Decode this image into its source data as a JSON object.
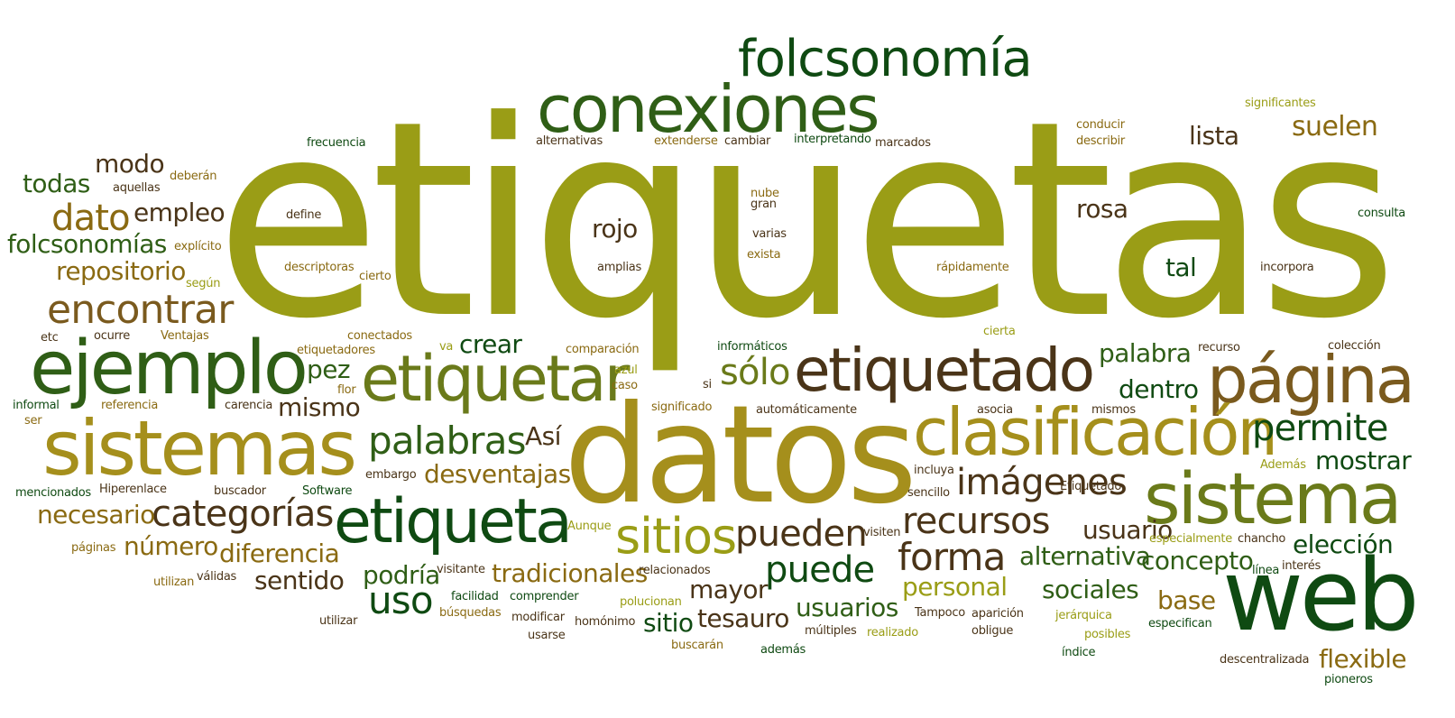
{
  "palette": {
    "olive": "#9a9d16",
    "gold": "#a58f1c",
    "ochre": "#8a6a12",
    "bronze": "#7a5a1e",
    "brown": "#4a3418",
    "dark_green": "#0f4a12",
    "mid_green": "#2f5e16",
    "moss": "#6a7a1a"
  },
  "words": [
    {
      "text": "etiquetas",
      "color": "olive"
    },
    {
      "text": "folcsonomía",
      "color": "dark_green"
    },
    {
      "text": "conexiones",
      "color": "mid_green"
    },
    {
      "text": "datos",
      "color": "gold"
    },
    {
      "text": "web",
      "color": "dark_green"
    },
    {
      "text": "sistemas",
      "color": "gold"
    },
    {
      "text": "ejemplo",
      "color": "mid_green"
    },
    {
      "text": "etiquetado",
      "color": "brown"
    },
    {
      "text": "página",
      "color": "bronze"
    },
    {
      "text": "clasificación",
      "color": "gold"
    },
    {
      "text": "sistema",
      "color": "moss"
    },
    {
      "text": "etiquetar",
      "color": "moss"
    },
    {
      "text": "etiqueta",
      "color": "dark_green"
    },
    {
      "text": "encontrar",
      "color": "bronze"
    },
    {
      "text": "sitios",
      "color": "olive"
    },
    {
      "text": "imágenes",
      "color": "brown"
    },
    {
      "text": "recursos",
      "color": "brown"
    },
    {
      "text": "palabras",
      "color": "mid_green"
    },
    {
      "text": "forma",
      "color": "brown"
    },
    {
      "text": "puede",
      "color": "dark_green"
    },
    {
      "text": "pueden",
      "color": "brown"
    },
    {
      "text": "permite",
      "color": "dark_green"
    },
    {
      "text": "categorías",
      "color": "brown"
    },
    {
      "text": "dato",
      "color": "ochre"
    },
    {
      "text": "sólo",
      "color": "moss"
    },
    {
      "text": "uso",
      "color": "dark_green"
    },
    {
      "text": "modo",
      "color": "brown"
    },
    {
      "text": "repositorio",
      "color": "ochre"
    },
    {
      "text": "folcsonomías",
      "color": "mid_green"
    },
    {
      "text": "todas",
      "color": "mid_green"
    },
    {
      "text": "empleo",
      "color": "brown"
    },
    {
      "text": "lista",
      "color": "brown"
    },
    {
      "text": "suelen",
      "color": "ochre"
    },
    {
      "text": "rosa",
      "color": "brown"
    },
    {
      "text": "rojo",
      "color": "brown"
    },
    {
      "text": "tal",
      "color": "dark_green"
    },
    {
      "text": "crear",
      "color": "dark_green"
    },
    {
      "text": "pez",
      "color": "mid_green"
    },
    {
      "text": "mismo",
      "color": "brown"
    },
    {
      "text": "palabra",
      "color": "mid_green"
    },
    {
      "text": "dentro",
      "color": "dark_green"
    },
    {
      "text": "Así",
      "color": "brown"
    },
    {
      "text": "desventajas",
      "color": "ochre"
    },
    {
      "text": "mostrar",
      "color": "dark_green"
    },
    {
      "text": "necesario",
      "color": "ochre"
    },
    {
      "text": "número",
      "color": "ochre"
    },
    {
      "text": "diferencia",
      "color": "ochre"
    },
    {
      "text": "sentido",
      "color": "brown"
    },
    {
      "text": "podría",
      "color": "mid_green"
    },
    {
      "text": "tradicionales",
      "color": "ochre"
    },
    {
      "text": "mayor",
      "color": "brown"
    },
    {
      "text": "alternativa",
      "color": "mid_green"
    },
    {
      "text": "usuario",
      "color": "brown"
    },
    {
      "text": "elección",
      "color": "dark_green"
    },
    {
      "text": "concepto",
      "color": "mid_green"
    },
    {
      "text": "personal",
      "color": "olive"
    },
    {
      "text": "usuarios",
      "color": "mid_green"
    },
    {
      "text": "sociales",
      "color": "mid_green"
    },
    {
      "text": "base",
      "color": "ochre"
    },
    {
      "text": "tesauro",
      "color": "brown"
    },
    {
      "text": "sitio",
      "color": "dark_green"
    },
    {
      "text": "flexible",
      "color": "ochre"
    },
    {
      "text": "frecuencia",
      "color": "dark_green"
    },
    {
      "text": "alternativas",
      "color": "brown"
    },
    {
      "text": "extenderse",
      "color": "ochre"
    },
    {
      "text": "cambiar",
      "color": "brown"
    },
    {
      "text": "interpretando",
      "color": "dark_green"
    },
    {
      "text": "marcados",
      "color": "brown"
    },
    {
      "text": "conducir",
      "color": "ochre"
    },
    {
      "text": "describir",
      "color": "ochre"
    },
    {
      "text": "significantes",
      "color": "olive"
    },
    {
      "text": "deberán",
      "color": "ochre"
    },
    {
      "text": "aquellas",
      "color": "brown"
    },
    {
      "text": "define",
      "color": "brown"
    },
    {
      "text": "nube",
      "color": "ochre"
    },
    {
      "text": "gran",
      "color": "brown"
    },
    {
      "text": "consulta",
      "color": "dark_green"
    },
    {
      "text": "explícito",
      "color": "ochre"
    },
    {
      "text": "varias",
      "color": "brown"
    },
    {
      "text": "exista",
      "color": "ochre"
    },
    {
      "text": "descriptoras",
      "color": "ochre"
    },
    {
      "text": "amplias",
      "color": "brown"
    },
    {
      "text": "cierto",
      "color": "ochre"
    },
    {
      "text": "rápidamente",
      "color": "ochre"
    },
    {
      "text": "incorpora",
      "color": "brown"
    },
    {
      "text": "según",
      "color": "olive"
    },
    {
      "text": "etc",
      "color": "brown"
    },
    {
      "text": "ocurre",
      "color": "brown"
    },
    {
      "text": "Ventajas",
      "color": "ochre"
    },
    {
      "text": "conectados",
      "color": "ochre"
    },
    {
      "text": "cierta",
      "color": "olive"
    },
    {
      "text": "etiquetadores",
      "color": "ochre"
    },
    {
      "text": "va",
      "color": "olive"
    },
    {
      "text": "comparación",
      "color": "ochre"
    },
    {
      "text": "informáticos",
      "color": "dark_green"
    },
    {
      "text": "recurso",
      "color": "brown"
    },
    {
      "text": "colección",
      "color": "brown"
    },
    {
      "text": "azul",
      "color": "olive"
    },
    {
      "text": "caso",
      "color": "ochre"
    },
    {
      "text": "si",
      "color": "brown"
    },
    {
      "text": "flor",
      "color": "ochre"
    },
    {
      "text": "informal",
      "color": "dark_green"
    },
    {
      "text": "referencia",
      "color": "ochre"
    },
    {
      "text": "carencia",
      "color": "brown"
    },
    {
      "text": "significado",
      "color": "ochre"
    },
    {
      "text": "automáticamente",
      "color": "brown"
    },
    {
      "text": "asocia",
      "color": "brown"
    },
    {
      "text": "mismos",
      "color": "brown"
    },
    {
      "text": "ser",
      "color": "ochre"
    },
    {
      "text": "embargo",
      "color": "brown"
    },
    {
      "text": "incluya",
      "color": "brown"
    },
    {
      "text": "Además",
      "color": "olive"
    },
    {
      "text": "mencionados",
      "color": "dark_green"
    },
    {
      "text": "Hiperenlace",
      "color": "brown"
    },
    {
      "text": "buscador",
      "color": "brown"
    },
    {
      "text": "Software",
      "color": "dark_green"
    },
    {
      "text": "sencillo",
      "color": "brown"
    },
    {
      "text": "Etiquetado",
      "color": "brown"
    },
    {
      "text": "Aunque",
      "color": "olive"
    },
    {
      "text": "visiten",
      "color": "brown"
    },
    {
      "text": "especialmente",
      "color": "olive"
    },
    {
      "text": "chancho",
      "color": "brown"
    },
    {
      "text": "páginas",
      "color": "ochre"
    },
    {
      "text": "utilizan",
      "color": "ochre"
    },
    {
      "text": "válidas",
      "color": "brown"
    },
    {
      "text": "visitante",
      "color": "brown"
    },
    {
      "text": "relacionados",
      "color": "brown"
    },
    {
      "text": "línea",
      "color": "dark_green"
    },
    {
      "text": "interés",
      "color": "brown"
    },
    {
      "text": "facilidad",
      "color": "dark_green"
    },
    {
      "text": "comprender",
      "color": "dark_green"
    },
    {
      "text": "polucionan",
      "color": "olive"
    },
    {
      "text": "utilizar",
      "color": "brown"
    },
    {
      "text": "búsquedas",
      "color": "ochre"
    },
    {
      "text": "modificar",
      "color": "brown"
    },
    {
      "text": "homónimo",
      "color": "brown"
    },
    {
      "text": "Tampoco",
      "color": "brown"
    },
    {
      "text": "aparición",
      "color": "brown"
    },
    {
      "text": "jerárquica",
      "color": "olive"
    },
    {
      "text": "especifican",
      "color": "dark_green"
    },
    {
      "text": "múltiples",
      "color": "brown"
    },
    {
      "text": "realizado",
      "color": "olive"
    },
    {
      "text": "oblige",
      "color": "brown"
    },
    {
      "text": "posibles",
      "color": "olive"
    },
    {
      "text": "usarse",
      "color": "brown"
    },
    {
      "text": "buscarán",
      "color": "ochre"
    },
    {
      "text": "además",
      "color": "dark_green"
    },
    {
      "text": "índice",
      "color": "dark_green"
    },
    {
      "text": "descentralizada",
      "color": "brown"
    },
    {
      "text": "pioneros",
      "color": "dark_green"
    }
  ]
}
